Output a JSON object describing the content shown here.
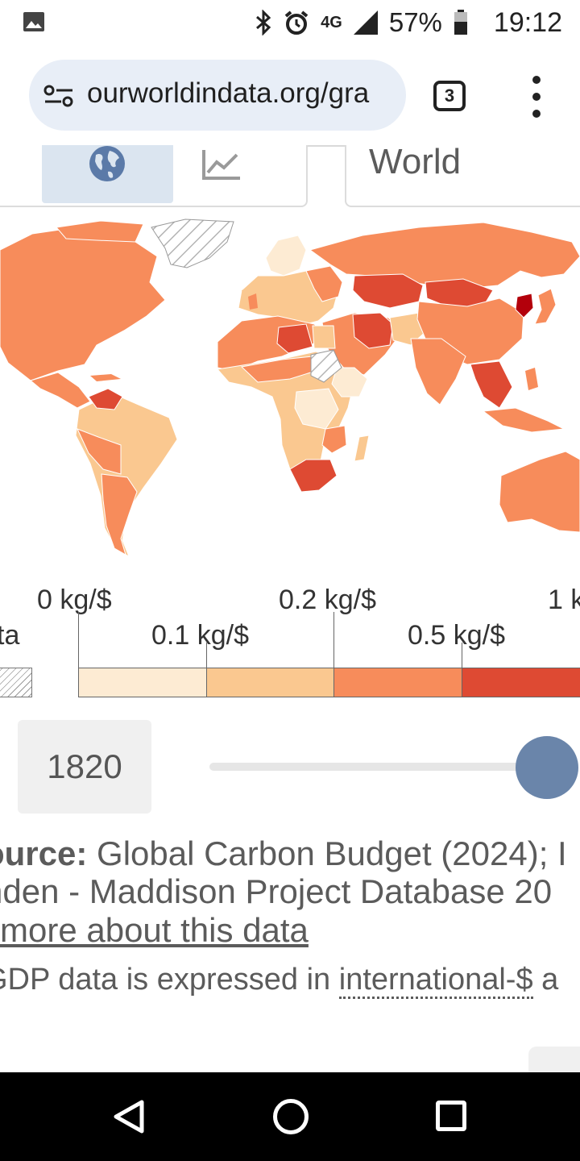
{
  "status_bar": {
    "network": "4G",
    "battery": "57%",
    "time": "19:12",
    "icons": [
      "photo-icon",
      "bluetooth-icon",
      "alarm-icon",
      "signal-icon",
      "battery-icon"
    ]
  },
  "browser": {
    "url": "ourworldindata.org/gra",
    "tab_count": "3",
    "icons": [
      "site-settings-icon",
      "overflow-menu-icon"
    ]
  },
  "controls": {
    "view_tabs": [
      {
        "name": "map",
        "icon": "globe-icon",
        "selected": true
      },
      {
        "name": "chart",
        "icon": "line-chart-icon",
        "selected": false
      }
    ],
    "entity": "World"
  },
  "legend": {
    "no_data_label": "ta",
    "top_labels": [
      "0 kg/$",
      "0.2 kg/$",
      "1 k"
    ],
    "bottom_labels": [
      "0.1 kg/$",
      "0.5 kg/$"
    ],
    "bins": [
      "#fdebd3",
      "#fac890",
      "#f78c5b",
      "#de4a33"
    ],
    "no_data_pattern": "hatched-gray"
  },
  "timeline": {
    "year": "1820",
    "slider_position": 1.0
  },
  "source": {
    "label": "ource:",
    "line1": " Global Carbon Budget (2024); I",
    "line2": "nden - Maddison Project Database 20",
    "learn_more": "more about this data",
    "note_prefix": "GDP data is expressed in ",
    "note_link": "international-$",
    "note_suffix": " a"
  },
  "map_colors": {
    "ocean": "#ffffff",
    "lightest": "#fdebd3",
    "light": "#fac890",
    "medium": "#f78c5b",
    "dark": "#de4a33",
    "darkest": "#b3000b"
  }
}
